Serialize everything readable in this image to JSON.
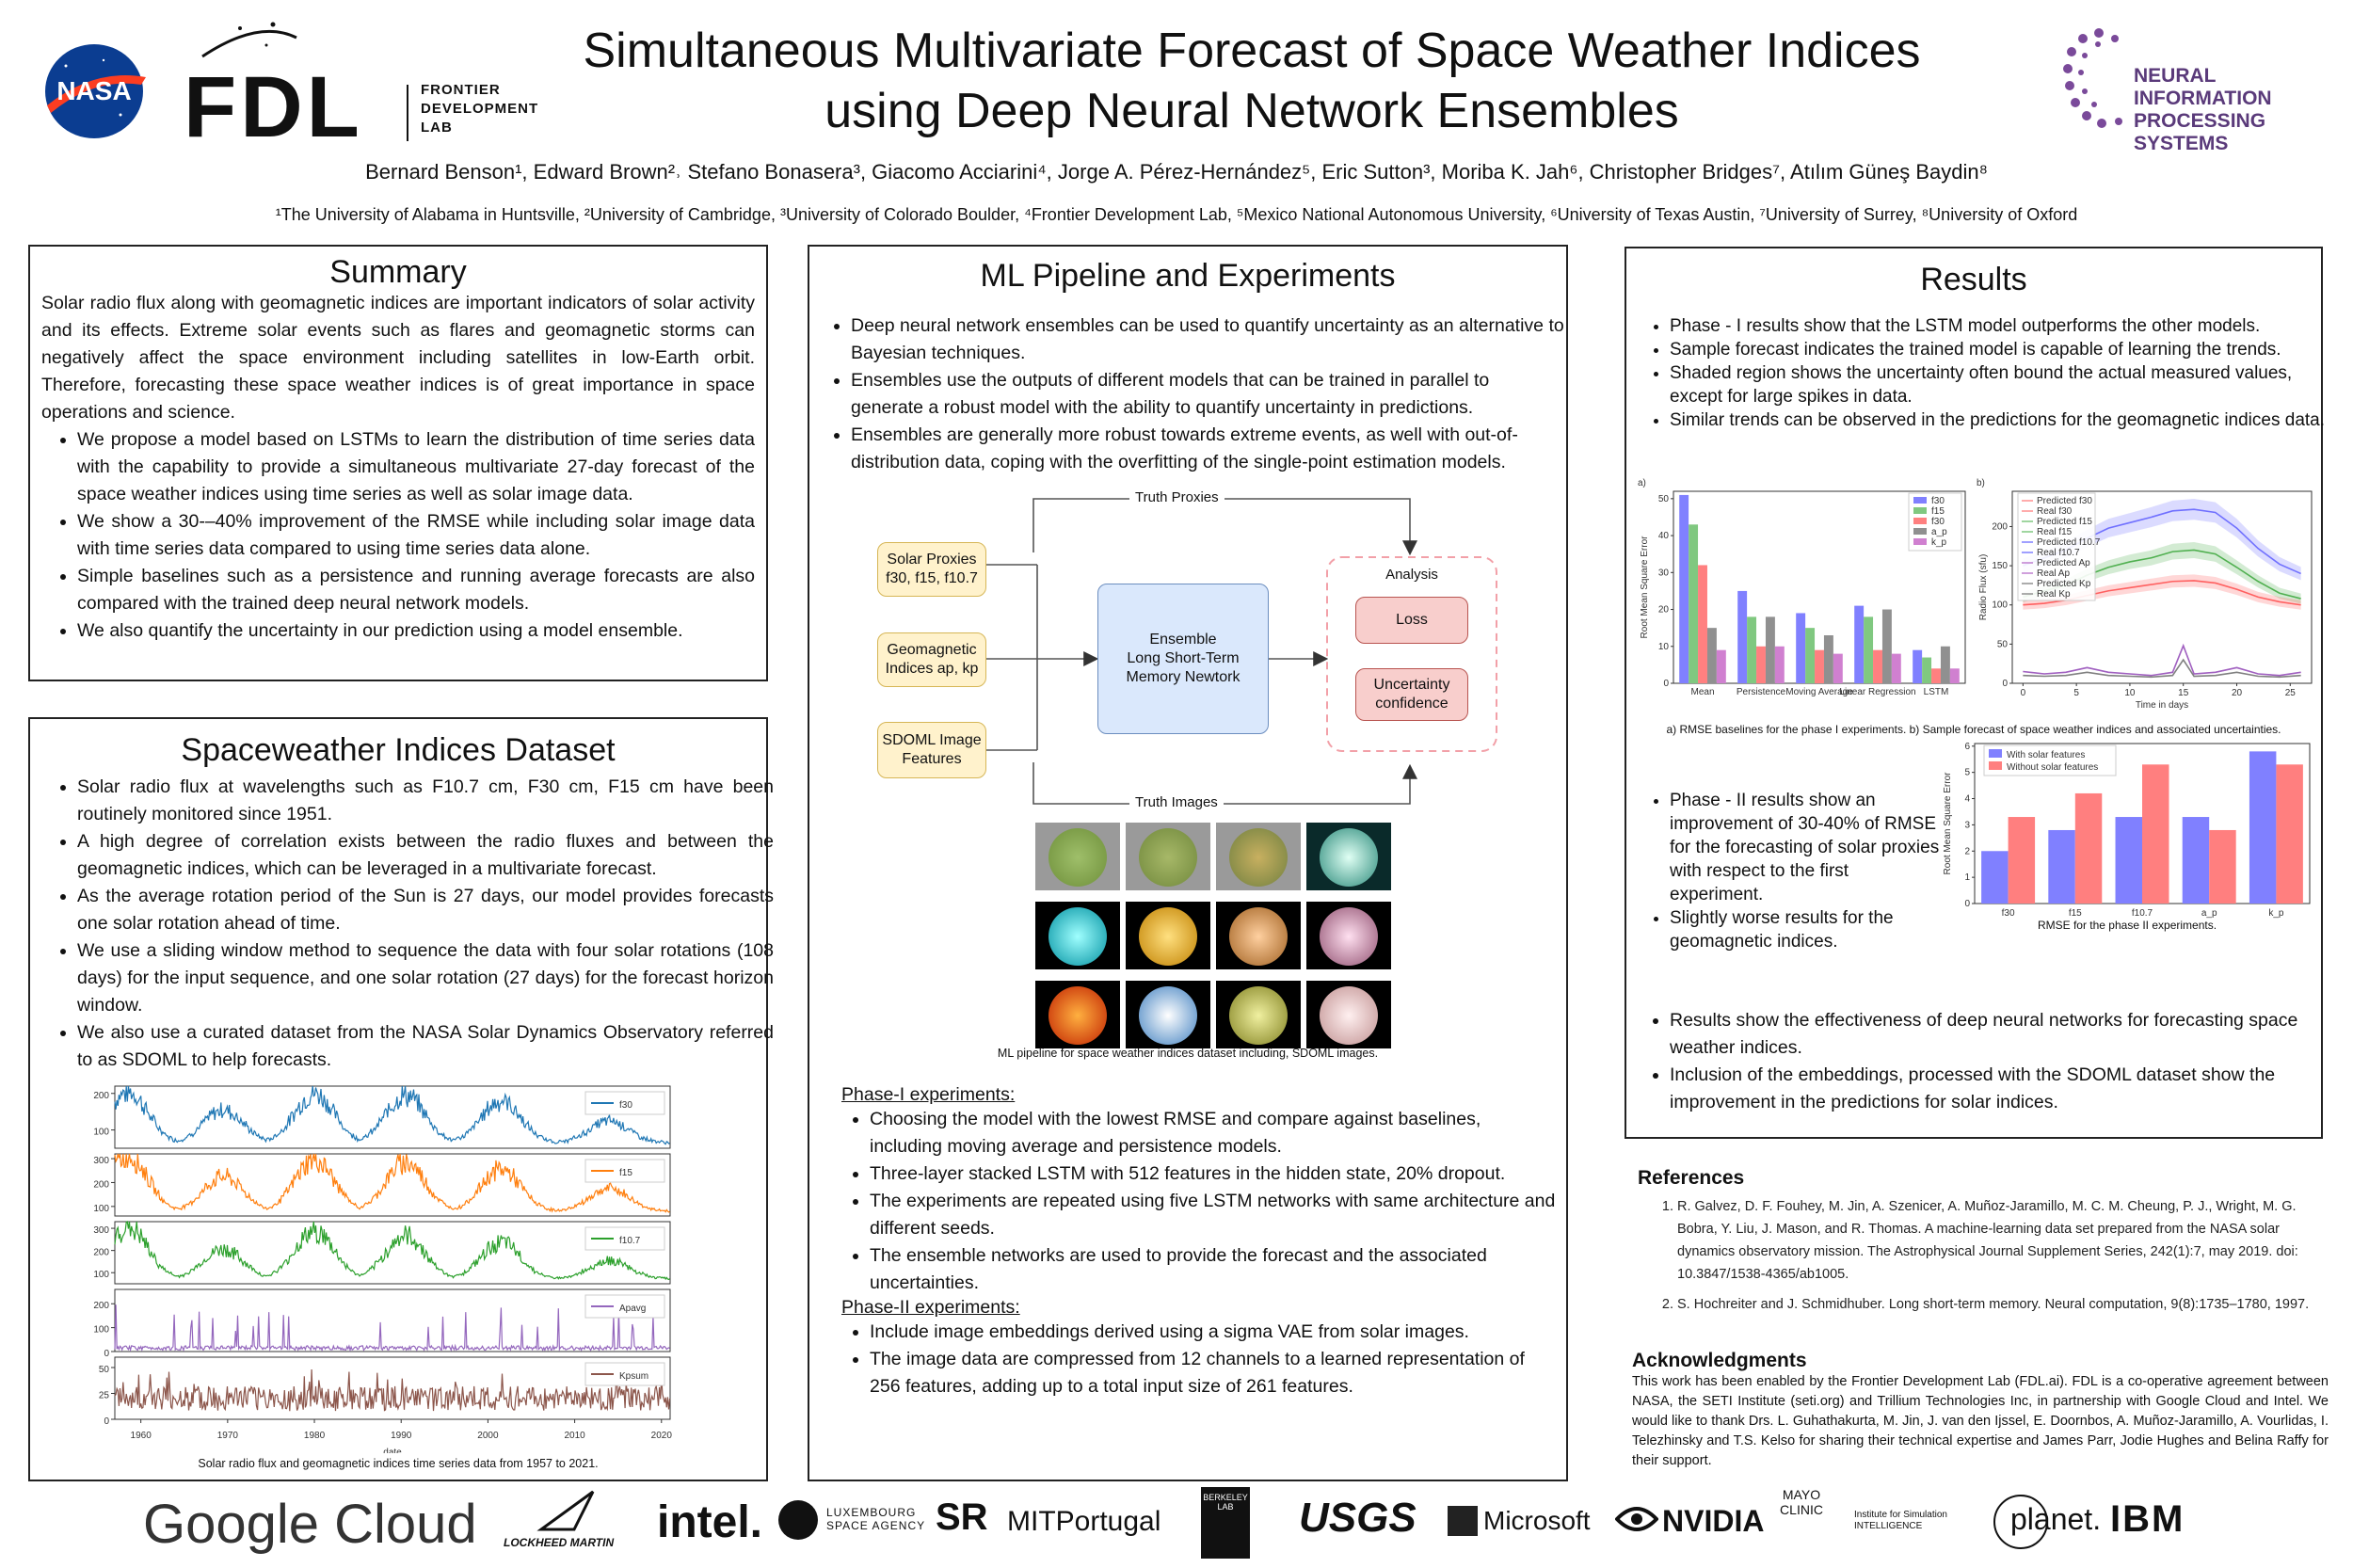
{
  "header": {
    "title_line1": "Simultaneous Multivariate Forecast of Space Weather Indices",
    "title_line2": "using Deep Neural Network Ensembles",
    "authors": "Bernard Benson¹, Edward Brown²˒ Stefano Bonasera³, Giacomo Acciarini⁴, Jorge A. Pérez-Hernández⁵, Eric Sutton³, Moriba K. Jah⁶, Christopher Bridges⁷, Atılım Güneş Baydin⁸",
    "affiliations": "¹The University of Alabama in Huntsville, ²University of Cambridge, ³University of Colorado Boulder, ⁴Frontier Development Lab, ⁵Mexico National Autonomous University, ⁶University of Texas Austin, ⁷University of Surrey, ⁸University of Oxford",
    "logo_nasa": "NASA",
    "logo_fdl": "FDL",
    "logo_fdl_sub": [
      "FRONTIER",
      "DEVELOPMENT",
      "LAB"
    ],
    "logo_neurips": [
      "NEURAL INFORMATION",
      "PROCESSING SYSTEMS"
    ]
  },
  "summary": {
    "title": "Summary",
    "intro": "Solar radio flux along with geomagnetic indices are important indicators of solar activity and its effects. Extreme solar events such as flares and geomagnetic storms can negatively affect the space environment including satellites in low-Earth orbit. Therefore, forecasting these space weather indices is of great importance in space operations and science.",
    "bullets": [
      "We propose a model based on LSTMs to learn the distribution of time series data with the capability to provide a simultaneous multivariate 27-day forecast of the space weather indices using time series as well as solar image data.",
      "We show a 30-–40% improvement of the RMSE while including solar image data with time series data compared to using time series data alone.",
      "Simple baselines such as a persistence and running average forecasts are also compared with the trained deep neural network models.",
      "We also quantify the uncertainty in our prediction using a model ensemble."
    ]
  },
  "dataset": {
    "title": "Spaceweather Indices Dataset",
    "bullets": [
      "Solar radio flux at wavelengths such as F10.7 cm, F30 cm, F15 cm have been routinely monitored since 1951.",
      "A high degree of correlation exists between the radio fluxes and between the geomagnetic indices,  which can be leveraged in a multivariate forecast.",
      "As the average rotation period of the Sun is 27 days, our model provides forecasts one solar rotation ahead of time.",
      "We use a sliding window method to sequence the data with four solar rotations (108 days) for the input sequence, and one solar rotation (27 days) for the forecast horizon window.",
      "We  also use a curated dataset from the NASA Solar Dynamics Observatory referred to as SDOML to help forecasts."
    ],
    "caption": "Solar radio flux and geomagnetic indices time series data from 1957 to 2021."
  },
  "pipeline": {
    "title": "ML Pipeline and Experiments",
    "bullets": [
      "Deep neural network ensembles can be used to quantify uncertainty as an alternative to Bayesian techniques.",
      "Ensembles use the outputs of different models that can be trained in parallel to generate a robust model with the ability to quantify uncertainty in predictions.",
      "Ensembles are generally more robust towards extreme events, as well with out-of-distribution data, coping with the overfitting of the single-point estimation models."
    ],
    "diagram": {
      "truth_proxies": "Truth Proxies",
      "truth_images": "Truth Images",
      "solar_proxies": "Solar Proxies\nf30, f15, f10.7",
      "geomagnetic": "Geomagnetic\nIndices ap, kp",
      "sdoml": "SDOML Image\nFeatures",
      "ensemble": "Ensemble\nLong Short-Term\nMemory Newtork",
      "analysis": "Analysis",
      "loss": "Loss",
      "uncertainty": "Uncertainty\nconfidence"
    },
    "caption": "ML pipeline for space weather indices dataset including, SDOML images.",
    "phase1_title": "Phase-I experiments:",
    "phase1_bullets": [
      "Choosing the model with the lowest RMSE and compare against baselines, including moving average and persistence models.",
      "Three-layer stacked LSTM with 512 features in the hidden state, 20% dropout.",
      "The experiments are repeated using five LSTM networks with same architecture and different seeds.",
      "The ensemble networks are used to provide the forecast and the associated uncertainties."
    ],
    "phase2_title": "Phase-II experiments:",
    "phase2_bullets": [
      "Include image embeddings derived using a sigma VAE from solar images.",
      "The image data are compressed from 12 channels to a learned representation of 256 features, adding up to a total input size of 261 features."
    ]
  },
  "results": {
    "title": "Results",
    "bullets_top": [
      "Phase - I results show that the LSTM model outperforms the other models.",
      "Sample forecast indicates the trained model is capable of learning the trends.",
      "Shaded region shows the uncertainty often bound the actual measured values, except for large spikes in data.",
      "Similar trends can be observed in the predictions for the geomagnetic indices data."
    ],
    "caption_top": "a) RMSE baselines for the phase I experiments. b) Sample forecast of space weather indices and associated uncertainties.",
    "bullets_mid": [
      "Phase - II results show an improvement of 30-40% of RMSE for the forecasting of solar proxies with respect to the first experiment.",
      " Slightly worse results for the geomagnetic indices."
    ],
    "caption_mid": "RMSE for the phase II experiments.",
    "bullets_bottom": [
      "Results show the effectiveness of deep neural networks for forecasting space weather indices.",
      "Inclusion of the embeddings, processed with the SDOML dataset show the improvement in the predictions for solar indices."
    ]
  },
  "references": {
    "title": "References",
    "items": [
      "R. Galvez, D. F. Fouhey, M. Jin, A. Szenicer, A. Muñoz-Jaramillo, M. C. M. Cheung, P. J., Wright, M. G. Bobra, Y. Liu, J. Mason, and R. Thomas. A machine-learning data set prepared from the NASA solar dynamics observatory mission. The Astrophysical Journal Supplement Series, 242(1):7, may 2019. doi: 10.3847/1538-4365/ab1005.",
      "S. Hochreiter and J. Schmidhuber.   Long short-term memory. Neural computation,  9(8):1735–1780, 1997."
    ]
  },
  "acknowledgments": {
    "title": "Acknowledgments",
    "text": "This work has been enabled by the Frontier Development Lab (FDL.ai). FDL is a co-operative agreement between NASA, the SETI Institute (seti.org) and Trillium Technologies Inc, in partnership with Google Cloud and Intel. We would like to thank Drs. L. Guhathakurta, M. Jin, J. van den Ijssel, E. Doornbos, A. Muñoz-Jaramillo, A. Vourlidas, I. Telezhinsky and T.S. Kelso for sharing their technical expertise and James Parr, Jodie Hughes and Belina Raffy for their support."
  },
  "sponsors": [
    "Google Cloud",
    "LOCKHEED MARTIN",
    "intel.",
    "LUXEMBOURG SPACE AGENCY",
    "SR",
    "MITPortugal",
    "BERKELEY LAB",
    "USGS",
    "Microsoft",
    "NVIDIA",
    "MAYO CLINIC",
    "Institute for Simulation INTELLIGENCE",
    "planet.",
    "IBM"
  ],
  "chart_data": [
    {
      "type": "line",
      "caption": "Solar radio flux and geomagnetic indices time series data from 1957 to 2021.",
      "xlabel": "date",
      "x_ticks": [
        1960,
        1970,
        1980,
        1990,
        2000,
        2010,
        2020
      ],
      "xlim": [
        1957,
        2021
      ],
      "panels": [
        {
          "name": "f30",
          "color": "#1f77b4",
          "ylim": [
            50,
            220
          ],
          "yticks": [
            100,
            200
          ],
          "cycle_peaks": [
            {
              "year": 1958.5,
              "v": 200
            },
            {
              "year": 1969.5,
              "v": 150
            },
            {
              "year": 1980,
              "v": 195
            },
            {
              "year": 1990.5,
              "v": 190
            },
            {
              "year": 2001.5,
              "v": 175
            },
            {
              "year": 2014,
              "v": 120
            }
          ],
          "base": 60
        },
        {
          "name": "f15",
          "color": "#ff7f0e",
          "ylim": [
            60,
            320
          ],
          "yticks": [
            100,
            200,
            300
          ],
          "cycle_peaks": [
            {
              "year": 1958.5,
              "v": 310
            },
            {
              "year": 1969.5,
              "v": 220
            },
            {
              "year": 1980,
              "v": 290
            },
            {
              "year": 1990.5,
              "v": 280
            },
            {
              "year": 2001.5,
              "v": 250
            },
            {
              "year": 2014,
              "v": 170
            }
          ],
          "base": 75
        },
        {
          "name": "f10.7",
          "color": "#2ca02c",
          "ylim": [
            50,
            330
          ],
          "yticks": [
            100,
            200,
            300
          ],
          "cycle_peaks": [
            {
              "year": 1958.5,
              "v": 300
            },
            {
              "year": 1969.5,
              "v": 200
            },
            {
              "year": 1980,
              "v": 280
            },
            {
              "year": 1990.5,
              "v": 260
            },
            {
              "year": 2001.5,
              "v": 230
            },
            {
              "year": 2014,
              "v": 150
            }
          ],
          "base": 68
        },
        {
          "name": "Apavg",
          "color": "#9467bd",
          "ylim": [
            0,
            260
          ],
          "yticks": [
            0,
            100,
            200
          ],
          "level": 15,
          "spike": 200
        },
        {
          "name": "Kpsum",
          "color": "#8c564b",
          "ylim": [
            0,
            60
          ],
          "yticks": [
            0,
            25,
            50
          ],
          "level": 20,
          "spike": 50
        }
      ]
    },
    {
      "type": "bar",
      "panel": "a)",
      "ylabel": "Root Mean Square Error",
      "categories": [
        "Mean",
        "Persistence",
        "Moving Average",
        "Linear Regression",
        "LSTM"
      ],
      "ylim": [
        0,
        52
      ],
      "yticks": [
        0,
        10,
        20,
        30,
        40,
        50
      ],
      "series": [
        {
          "name": "f30",
          "color": "#8080ff",
          "values": [
            51,
            25,
            19,
            21,
            9
          ]
        },
        {
          "name": "f15",
          "color": "#80c880",
          "values": [
            43,
            18,
            15,
            18,
            7
          ]
        },
        {
          "name": "f30",
          "color": "#ff8080",
          "values": [
            32,
            10,
            9,
            9,
            4
          ]
        },
        {
          "name": "a_p",
          "color": "#909090",
          "values": [
            15,
            18,
            13,
            20,
            10
          ]
        },
        {
          "name": "k_p",
          "color": "#d080d0",
          "values": [
            9,
            10,
            8,
            8,
            4
          ]
        }
      ]
    },
    {
      "type": "line",
      "panel": "b)",
      "xlabel": "Time in days",
      "ylabel": "Radio Flux (sfu)",
      "xlim": [
        -1,
        27
      ],
      "ylim": [
        0,
        245
      ],
      "x_ticks": [
        0,
        5,
        10,
        15,
        20,
        25
      ],
      "y_ticks": [
        0,
        50,
        100,
        150,
        200
      ],
      "legend": [
        "Predicted f30",
        "Real f30",
        "Predicted f15",
        "Real f15",
        "Predicted f10.7",
        "Real f10.7",
        "Predicted Ap",
        "Real Ap",
        "Predicted Kp",
        "Real Kp"
      ],
      "series": [
        {
          "name": "Predicted f30",
          "color": "#7070ff",
          "x": [
            0,
            2,
            4,
            6,
            8,
            10,
            12,
            14,
            16,
            18,
            20,
            22,
            24,
            26
          ],
          "y": [
            150,
            160,
            170,
            185,
            198,
            205,
            212,
            220,
            222,
            218,
            198,
            172,
            152,
            140
          ]
        },
        {
          "name": "Predicted f15",
          "color": "#50b050",
          "x": [
            0,
            2,
            4,
            6,
            8,
            10,
            12,
            14,
            16,
            18,
            20,
            22,
            24,
            26
          ],
          "y": [
            110,
            118,
            125,
            138,
            148,
            155,
            160,
            168,
            170,
            165,
            148,
            130,
            115,
            108
          ]
        },
        {
          "name": "Predicted f10.7",
          "color": "#ff6060",
          "x": [
            0,
            2,
            4,
            6,
            8,
            10,
            12,
            14,
            16,
            18,
            20,
            22,
            24,
            26
          ],
          "y": [
            100,
            102,
            106,
            112,
            118,
            122,
            126,
            130,
            131,
            128,
            120,
            110,
            104,
            100
          ]
        },
        {
          "name": "Predicted Ap",
          "color": "#a060c0",
          "x": [
            0,
            2,
            4,
            6,
            8,
            10,
            12,
            14,
            15,
            16,
            18,
            20,
            22,
            24,
            26
          ],
          "y": [
            15,
            12,
            14,
            20,
            14,
            12,
            10,
            14,
            48,
            12,
            14,
            20,
            12,
            10,
            14
          ]
        },
        {
          "name": "Predicted Kp",
          "color": "#808080",
          "x": [
            0,
            2,
            4,
            6,
            8,
            10,
            12,
            14,
            15,
            16,
            18,
            20,
            22,
            24,
            26
          ],
          "y": [
            10,
            9,
            10,
            14,
            10,
            9,
            8,
            10,
            30,
            9,
            10,
            14,
            9,
            8,
            10
          ]
        }
      ]
    },
    {
      "type": "bar",
      "caption": "RMSE for the phase II experiments.",
      "ylabel": "Root Mean Square Error",
      "categories": [
        "f30",
        "f15",
        "f10.7",
        "a_p",
        "k_p"
      ],
      "ylim": [
        0,
        6.1
      ],
      "yticks": [
        0,
        1,
        2,
        3,
        4,
        5,
        6
      ],
      "series": [
        {
          "name": "With solar features",
          "color": "#8080ff",
          "values": [
            2.0,
            2.8,
            3.3,
            3.3,
            5.8
          ]
        },
        {
          "name": "Without solar features",
          "color": "#ff7f7f",
          "values": [
            3.3,
            4.2,
            5.3,
            2.8,
            5.3
          ]
        }
      ]
    }
  ]
}
